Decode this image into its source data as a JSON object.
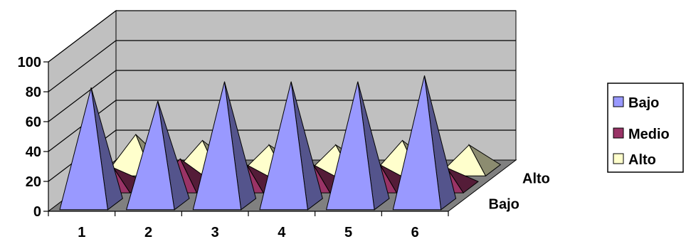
{
  "chart_data": {
    "type": "bar",
    "shape": "pyramid-3d",
    "categories": [
      "1",
      "2",
      "3",
      "4",
      "5",
      "6"
    ],
    "depth_labels": [
      "Bajo",
      "Alto"
    ],
    "series": [
      {
        "name": "Bajo",
        "values": [
          78,
          69,
          82,
          82,
          82,
          86
        ],
        "color": "#9999FF"
      },
      {
        "name": "Medio",
        "values": [
          13,
          19,
          15,
          15,
          15,
          13
        ],
        "color": "#993366"
      },
      {
        "name": "Alto",
        "values": [
          24,
          20,
          17,
          17,
          20,
          17
        ],
        "color": "#FFFFCC"
      }
    ],
    "yticks": [
      "0",
      "20",
      "40",
      "60",
      "80",
      "100"
    ],
    "ylim": [
      0,
      100
    ],
    "grid": true,
    "legend_position": "right",
    "title": "",
    "xlabel": "",
    "ylabel": "",
    "colors": {
      "wall": "#C0C0C0",
      "floor": "#808080",
      "gridline": "#000000"
    }
  }
}
